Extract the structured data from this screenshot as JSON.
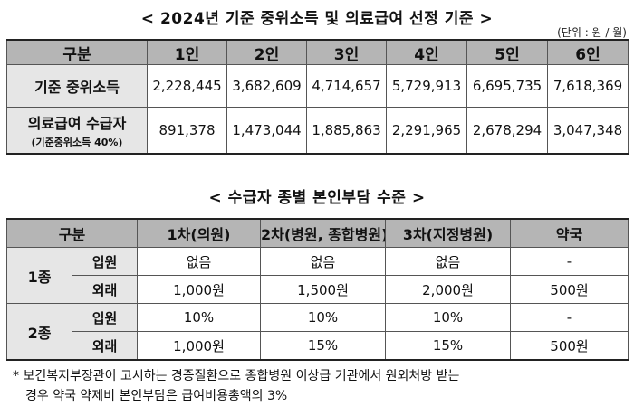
{
  "title1": "< 2024년 기준 중위소득 및 의료급여 선정 기준 >",
  "unit": "(단위 : 원 / 월)",
  "table1": {
    "corner": "구분",
    "headers": [
      "1인",
      "2인",
      "3인",
      "4인",
      "5인",
      "6인"
    ],
    "row1": {
      "label": "기준 중위소득",
      "values": [
        "2,228,445",
        "3,682,609",
        "4,714,657",
        "5,729,913",
        "6,695,735",
        "7,618,369"
      ]
    },
    "row2": {
      "label": "의료급여 수급자",
      "sublabel": "(기준중위소득 40%)",
      "values": [
        "891,378",
        "1,473,044",
        "1,885,863",
        "2,291,965",
        "2,678,294",
        "3,047,348"
      ]
    }
  },
  "title2": "< 수급자 종별 본인부담 수준 >",
  "table2": {
    "corner": "구분",
    "headers": [
      "1차(의원)",
      "2차(병원, 종합병원)",
      "3차(지정병원)",
      "약국"
    ],
    "group1": {
      "label": "1종",
      "rows": [
        {
          "type": "입원",
          "values": [
            "없음",
            "없음",
            "없음",
            "-"
          ]
        },
        {
          "type": "외래",
          "values": [
            "1,000원",
            "1,500원",
            "2,000원",
            "500원"
          ]
        }
      ]
    },
    "group2": {
      "label": "2종",
      "rows": [
        {
          "type": "입원",
          "values": [
            "10%",
            "10%",
            "10%",
            "-"
          ]
        },
        {
          "type": "외래",
          "values": [
            "1,000원",
            "15%",
            "15%",
            "500원"
          ]
        }
      ]
    }
  },
  "note": {
    "line1": "* 보건복지부장관이 고시하는 경증질환으로 종합병원 이상급 기관에서 원외처방 받는",
    "line2": "경우 약국 약제비 본인부담은 급여비용총액의 3%"
  }
}
